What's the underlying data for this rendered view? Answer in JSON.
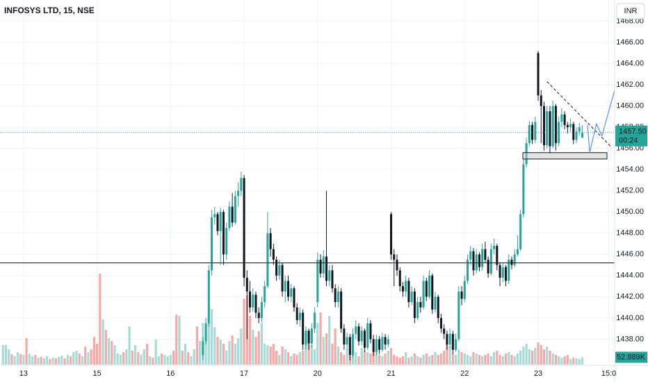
{
  "chart_data": {
    "type": "candlestick",
    "title": "INFOSYS LTD, 15, NSE",
    "currency": "INR",
    "xlim": [
      -1,
      208
    ],
    "xticks": [
      {
        "value": 7,
        "label": "13"
      },
      {
        "value": 32,
        "label": "15"
      },
      {
        "value": 57,
        "label": "16"
      },
      {
        "value": 82,
        "label": "17"
      },
      {
        "value": 107,
        "label": "20"
      },
      {
        "value": 132,
        "label": "21"
      },
      {
        "value": 157,
        "label": "22"
      },
      {
        "value": 182,
        "label": "23"
      },
      {
        "value": 206,
        "label": "15:0"
      }
    ],
    "ylim": [
      1435.6,
      1470
    ],
    "yticks": [
      {
        "value": 1438,
        "label": "1438.00"
      },
      {
        "value": 1440,
        "label": "1440.00"
      },
      {
        "value": 1442,
        "label": "1442.00"
      },
      {
        "value": 1444,
        "label": "1444.00"
      },
      {
        "value": 1446,
        "label": "1446.00"
      },
      {
        "value": 1448,
        "label": "1448.00"
      },
      {
        "value": 1450,
        "label": "1450.00"
      },
      {
        "value": 1452,
        "label": "1452.00"
      },
      {
        "value": 1454,
        "label": "1454.00"
      },
      {
        "value": 1456,
        "label": "1456.00"
      },
      {
        "value": 1458,
        "label": "1458.00"
      },
      {
        "value": 1460,
        "label": "1460.00"
      },
      {
        "value": 1462,
        "label": "1462.00"
      },
      {
        "value": 1464,
        "label": "1464.00"
      },
      {
        "value": 1466,
        "label": "1466.00"
      },
      {
        "value": 1468,
        "label": "1468.00"
      }
    ],
    "grid": true,
    "up_color": "#26a69a",
    "down_color": "#131722",
    "x": [
      68,
      69,
      70,
      71,
      72,
      73,
      74,
      75,
      76,
      77,
      78,
      79,
      80,
      81,
      82,
      83,
      84,
      85,
      86,
      87,
      88,
      89,
      90,
      91,
      92,
      93,
      94,
      95,
      96,
      97,
      98,
      99,
      100,
      101,
      102,
      103,
      104,
      105,
      106,
      107,
      108,
      109,
      110,
      111,
      112,
      113,
      114,
      115,
      116,
      117,
      118,
      119,
      120,
      121,
      122,
      123,
      124,
      125,
      126,
      127,
      128,
      129,
      130,
      131,
      132,
      133,
      134,
      135,
      136,
      137,
      138,
      139,
      140,
      141,
      142,
      143,
      144,
      145,
      146,
      147,
      148,
      149,
      150,
      151,
      152,
      153,
      154,
      155,
      156,
      157,
      158,
      159,
      160,
      161,
      162,
      163,
      164,
      165,
      166,
      167,
      168,
      169,
      170,
      171,
      172,
      173,
      174,
      175,
      176,
      177,
      178,
      179,
      180,
      181,
      182,
      183,
      184,
      185,
      186,
      187,
      188,
      189,
      190,
      191,
      192,
      193,
      194,
      195,
      196,
      197
    ],
    "open": [
      1436.5,
      1437.8,
      1439.5,
      1444.5,
      1449.5,
      1449.8,
      1448.2,
      1450.0,
      1446.0,
      1448.5,
      1450.5,
      1449.0,
      1451.5,
      1452.0,
      1453.2,
      1443.8,
      1442.5,
      1441.0,
      1442.2,
      1440.5,
      1440.0,
      1441.5,
      1443.0,
      1448.0,
      1446.5,
      1445.5,
      1444.0,
      1445.0,
      1442.5,
      1443.5,
      1442.0,
      1442.8,
      1441.0,
      1439.8,
      1440.5,
      1437.5,
      1438.8,
      1437.6,
      1439.0,
      1441.5,
      1445.5,
      1444.2,
      1445.8,
      1443.5,
      1444.5,
      1442.8,
      1441.5,
      1442.5,
      1439.0,
      1437.5,
      1438.2,
      1436.5,
      1438.5,
      1439.2,
      1437.8,
      1438.8,
      1437.2,
      1439.5,
      1438.0,
      1436.8,
      1438.0,
      1437.0,
      1438.2,
      1437.5,
      1449.8,
      1446.0,
      1445.5,
      1444.5,
      1443.0,
      1442.5,
      1443.5,
      1441.5,
      1442.5,
      1440.0,
      1441.5,
      1441.0,
      1443.5,
      1442.0,
      1444.0,
      1440.8,
      1442.0,
      1440.0,
      1439.0,
      1438.5,
      1437.5,
      1438.5,
      1437.0,
      1438.0,
      1442.5,
      1441.8,
      1443.5,
      1445.5,
      1446.3,
      1444.5,
      1446.0,
      1444.8,
      1446.5,
      1445.5,
      1444.2,
      1446.5,
      1446.8,
      1445.0,
      1443.8,
      1444.8,
      1443.5,
      1445.5,
      1445.0,
      1446.0,
      1446.5,
      1449.8,
      1454.5,
      1456.5,
      1458.2,
      1456.8,
      1465.0,
      1461.0,
      1460.0,
      1456.3,
      1459.5,
      1456.2,
      1460.0,
      1456.5,
      1458.5,
      1459.2,
      1458.2,
      1458.0,
      1458.3,
      1456.8,
      1457.6,
      1457.0
    ],
    "close": [
      1437.8,
      1439.5,
      1444.5,
      1449.5,
      1449.8,
      1448.2,
      1450.0,
      1446.0,
      1448.5,
      1450.5,
      1449.0,
      1451.5,
      1452.0,
      1453.2,
      1443.8,
      1442.5,
      1441.0,
      1442.2,
      1440.5,
      1440.0,
      1441.5,
      1443.0,
      1448.0,
      1446.5,
      1445.5,
      1444.0,
      1445.0,
      1442.5,
      1443.5,
      1442.0,
      1442.8,
      1441.0,
      1439.8,
      1440.5,
      1437.5,
      1438.8,
      1437.6,
      1439.0,
      1440.5,
      1445.5,
      1444.2,
      1445.8,
      1443.5,
      1444.5,
      1442.8,
      1441.5,
      1442.5,
      1439.0,
      1437.5,
      1438.2,
      1436.5,
      1438.5,
      1439.2,
      1437.8,
      1438.8,
      1437.2,
      1439.5,
      1438.0,
      1436.8,
      1438.0,
      1437.0,
      1438.2,
      1437.5,
      1438.0,
      1446.0,
      1445.5,
      1444.5,
      1443.0,
      1442.5,
      1443.5,
      1441.5,
      1442.5,
      1440.0,
      1441.5,
      1441.0,
      1443.5,
      1442.0,
      1444.0,
      1440.8,
      1442.0,
      1440.0,
      1439.0,
      1438.5,
      1437.5,
      1438.5,
      1437.0,
      1438.0,
      1442.5,
      1441.8,
      1443.5,
      1445.5,
      1446.3,
      1444.5,
      1446.0,
      1444.8,
      1446.5,
      1445.5,
      1444.2,
      1446.5,
      1446.8,
      1445.0,
      1443.8,
      1444.8,
      1443.5,
      1445.5,
      1445.0,
      1446.0,
      1446.5,
      1449.8,
      1454.5,
      1456.5,
      1458.2,
      1456.8,
      1458.5,
      1461.0,
      1460.0,
      1456.3,
      1459.5,
      1456.2,
      1460.0,
      1456.5,
      1458.5,
      1459.2,
      1458.2,
      1458.0,
      1458.3,
      1456.8,
      1457.6,
      1458.0,
      1457.5
    ],
    "high": [
      1438.2,
      1440.0,
      1445.0,
      1450.2,
      1450.5,
      1450.0,
      1450.4,
      1450.2,
      1449.0,
      1451.0,
      1451.8,
      1452.0,
      1452.8,
      1453.8,
      1453.5,
      1444.5,
      1443.5,
      1442.8,
      1442.5,
      1441.0,
      1442.0,
      1443.5,
      1450.0,
      1448.5,
      1447.0,
      1445.8,
      1445.5,
      1445.2,
      1444.0,
      1444.0,
      1443.2,
      1443.0,
      1441.4,
      1441.0,
      1440.8,
      1439.2,
      1439.0,
      1439.5,
      1441.0,
      1446.2,
      1446.0,
      1446.4,
      1452.0,
      1445.0,
      1445.0,
      1443.2,
      1443.0,
      1442.8,
      1439.4,
      1438.6,
      1438.5,
      1439.0,
      1439.8,
      1439.5,
      1439.2,
      1439.0,
      1440.0,
      1439.8,
      1438.4,
      1438.4,
      1438.3,
      1438.6,
      1438.5,
      1438.4,
      1450.0,
      1446.5,
      1446.0,
      1444.8,
      1443.4,
      1444.0,
      1443.8,
      1443.0,
      1442.8,
      1442.0,
      1442.0,
      1444.0,
      1443.8,
      1444.5,
      1444.2,
      1442.5,
      1442.2,
      1440.4,
      1439.4,
      1438.8,
      1439.0,
      1438.8,
      1438.5,
      1443.0,
      1443.0,
      1444.0,
      1446.0,
      1446.8,
      1446.6,
      1446.5,
      1446.2,
      1447.0,
      1447.2,
      1445.8,
      1447.0,
      1447.5,
      1447.0,
      1445.2,
      1445.2,
      1445.0,
      1446.0,
      1445.8,
      1446.5,
      1447.8,
      1450.2,
      1455.0,
      1457.0,
      1458.6,
      1458.5,
      1459.0,
      1465.2,
      1461.5,
      1460.4,
      1460.0,
      1460.0,
      1460.5,
      1460.2,
      1459.0,
      1459.8,
      1459.5,
      1458.5,
      1458.8,
      1458.5,
      1458.0,
      1458.4,
      1458.2
    ],
    "low": [
      1436.0,
      1437.5,
      1439.2,
      1444.0,
      1448.8,
      1447.8,
      1445.0,
      1445.0,
      1445.5,
      1448.2,
      1448.6,
      1448.8,
      1450.5,
      1451.5,
      1443.0,
      1438.0,
      1440.5,
      1440.6,
      1440.0,
      1439.5,
      1439.6,
      1441.0,
      1442.8,
      1445.8,
      1445.0,
      1443.5,
      1443.6,
      1442.0,
      1441.5,
      1441.6,
      1441.5,
      1440.6,
      1439.4,
      1439.2,
      1437.0,
      1437.0,
      1437.0,
      1437.2,
      1438.6,
      1441.0,
      1443.8,
      1443.8,
      1443.0,
      1443.0,
      1442.4,
      1441.0,
      1441.0,
      1438.6,
      1437.0,
      1437.0,
      1436.0,
      1436.2,
      1438.0,
      1437.4,
      1437.4,
      1436.8,
      1437.0,
      1437.6,
      1436.4,
      1436.5,
      1436.6,
      1436.8,
      1437.0,
      1437.2,
      1445.5,
      1443.0,
      1444.0,
      1442.5,
      1442.0,
      1442.0,
      1441.0,
      1441.2,
      1439.5,
      1439.8,
      1440.5,
      1440.8,
      1441.6,
      1441.8,
      1440.4,
      1440.5,
      1439.5,
      1438.6,
      1438.0,
      1437.0,
      1437.2,
      1436.6,
      1436.8,
      1437.8,
      1441.2,
      1441.5,
      1443.2,
      1445.0,
      1444.0,
      1444.2,
      1444.4,
      1444.5,
      1445.2,
      1443.8,
      1444.0,
      1446.0,
      1444.5,
      1443.0,
      1443.4,
      1443.0,
      1443.2,
      1444.6,
      1444.8,
      1445.8,
      1446.3,
      1449.5,
      1454.2,
      1456.2,
      1456.4,
      1456.5,
      1460.5,
      1456.5,
      1455.8,
      1456.0,
      1455.5,
      1456.0,
      1455.8,
      1456.2,
      1458.0,
      1457.8,
      1457.4,
      1457.6,
      1456.4,
      1456.5,
      1457.2,
      1457.2
    ],
    "volume": {
      "lim": [
        0,
        1500
      ],
      "up_color": "#a8dbd5",
      "down_color": "#f7a9a7",
      "values": [
        140,
        140,
        110,
        75,
        60,
        90,
        75,
        70,
        190,
        80,
        60,
        70,
        50,
        55,
        45,
        60,
        40,
        50,
        45,
        55,
        65,
        45,
        70,
        60,
        90,
        100,
        80,
        60,
        130,
        90,
        110,
        200,
        150,
        655,
        325,
        250,
        190,
        170,
        140,
        80,
        70,
        90,
        110,
        275,
        100,
        140,
        90,
        70,
        110,
        150,
        60,
        50,
        180,
        60,
        80,
        70,
        60,
        70,
        100,
        360,
        350,
        100,
        150,
        90,
        60,
        110,
        275,
        170,
        300,
        210,
        330,
        400,
        270,
        200,
        180,
        150,
        100,
        170,
        210,
        150,
        190,
        260,
        475,
        500,
        350,
        250,
        200,
        240,
        300,
        150,
        140,
        130,
        150,
        100,
        70,
        130,
        110,
        90,
        60,
        80,
        70,
        90,
        100,
        200,
        150,
        140,
        110,
        300,
        375,
        200,
        225,
        350,
        150,
        260,
        130,
        90,
        70,
        110,
        60,
        150,
        90,
        60,
        120,
        100,
        90,
        80,
        110,
        90,
        70,
        60,
        80,
        100,
        120,
        70,
        60,
        50,
        60,
        90,
        50,
        60,
        80,
        60,
        50,
        70,
        80,
        60,
        70,
        90,
        70,
        80,
        100,
        150,
        130,
        80,
        70,
        110,
        90,
        80,
        70,
        60,
        90,
        80,
        70,
        60,
        70,
        80,
        60,
        90,
        100,
        70,
        60,
        80,
        90,
        70,
        60,
        80,
        100,
        130,
        150,
        110,
        100,
        120,
        160,
        140,
        110,
        130,
        100,
        80,
        70,
        60,
        50,
        60,
        70,
        40,
        50,
        45,
        40,
        52.889
      ],
      "up": [
        1,
        1,
        1,
        0,
        1,
        1,
        0,
        1,
        0,
        1,
        1,
        0,
        1,
        0,
        1,
        1,
        0,
        1,
        0,
        1,
        1,
        0,
        1,
        0,
        1,
        1,
        0,
        1,
        0,
        1,
        0,
        0,
        0,
        0,
        1,
        0,
        1,
        0,
        1,
        1,
        1,
        0,
        1,
        1,
        0,
        1,
        0,
        1,
        1,
        0,
        1,
        0,
        1,
        1,
        0,
        1,
        1,
        1,
        0,
        0,
        1,
        0,
        1,
        0,
        1,
        1,
        0,
        1,
        1,
        1,
        1,
        1,
        1,
        0,
        1,
        0,
        1,
        1,
        0,
        1,
        1,
        1,
        0,
        0,
        0,
        1,
        0,
        0,
        1,
        1,
        1,
        0,
        0,
        0,
        1,
        0,
        1,
        0,
        1,
        0,
        0,
        1,
        0,
        1,
        0,
        1,
        1,
        1,
        0,
        1,
        0,
        1,
        0,
        0,
        1,
        0,
        0,
        1,
        0,
        1,
        1,
        0,
        1,
        0,
        1,
        0,
        0,
        1,
        0,
        1,
        0,
        1,
        0,
        0,
        0,
        0,
        0,
        1,
        0,
        1,
        0,
        1,
        0,
        1,
        0,
        1,
        0,
        1,
        0,
        0,
        0,
        0,
        1,
        0,
        1,
        1,
        0,
        1,
        1,
        1,
        0,
        1,
        0,
        1,
        0,
        0,
        1,
        1,
        0,
        0,
        1,
        0,
        1,
        0,
        1,
        1,
        1,
        1,
        1,
        1,
        0,
        1,
        0,
        0,
        0,
        1,
        0,
        1,
        0,
        1,
        1,
        0,
        0,
        1,
        0,
        1,
        1,
        1
      ],
      "last_label": "52.889K"
    },
    "last_price": {
      "value": 1457.5,
      "label": "1457.50"
    },
    "countdown": "00:24",
    "hline": 1445.2,
    "zone": {
      "x": [
        176.8,
        205.4
      ],
      "y": [
        1455.0,
        1455.6
      ]
    },
    "trendline": {
      "x": [
        185,
        207
      ],
      "y": [
        1462.3,
        1456.1
      ]
    },
    "projection": {
      "color": "#5b8ff9",
      "x": [
        198.8,
        199.5,
        201.8,
        203.7,
        208
      ],
      "y": [
        1458.2,
        1455.6,
        1458.3,
        1457.2,
        1461.5
      ]
    }
  }
}
